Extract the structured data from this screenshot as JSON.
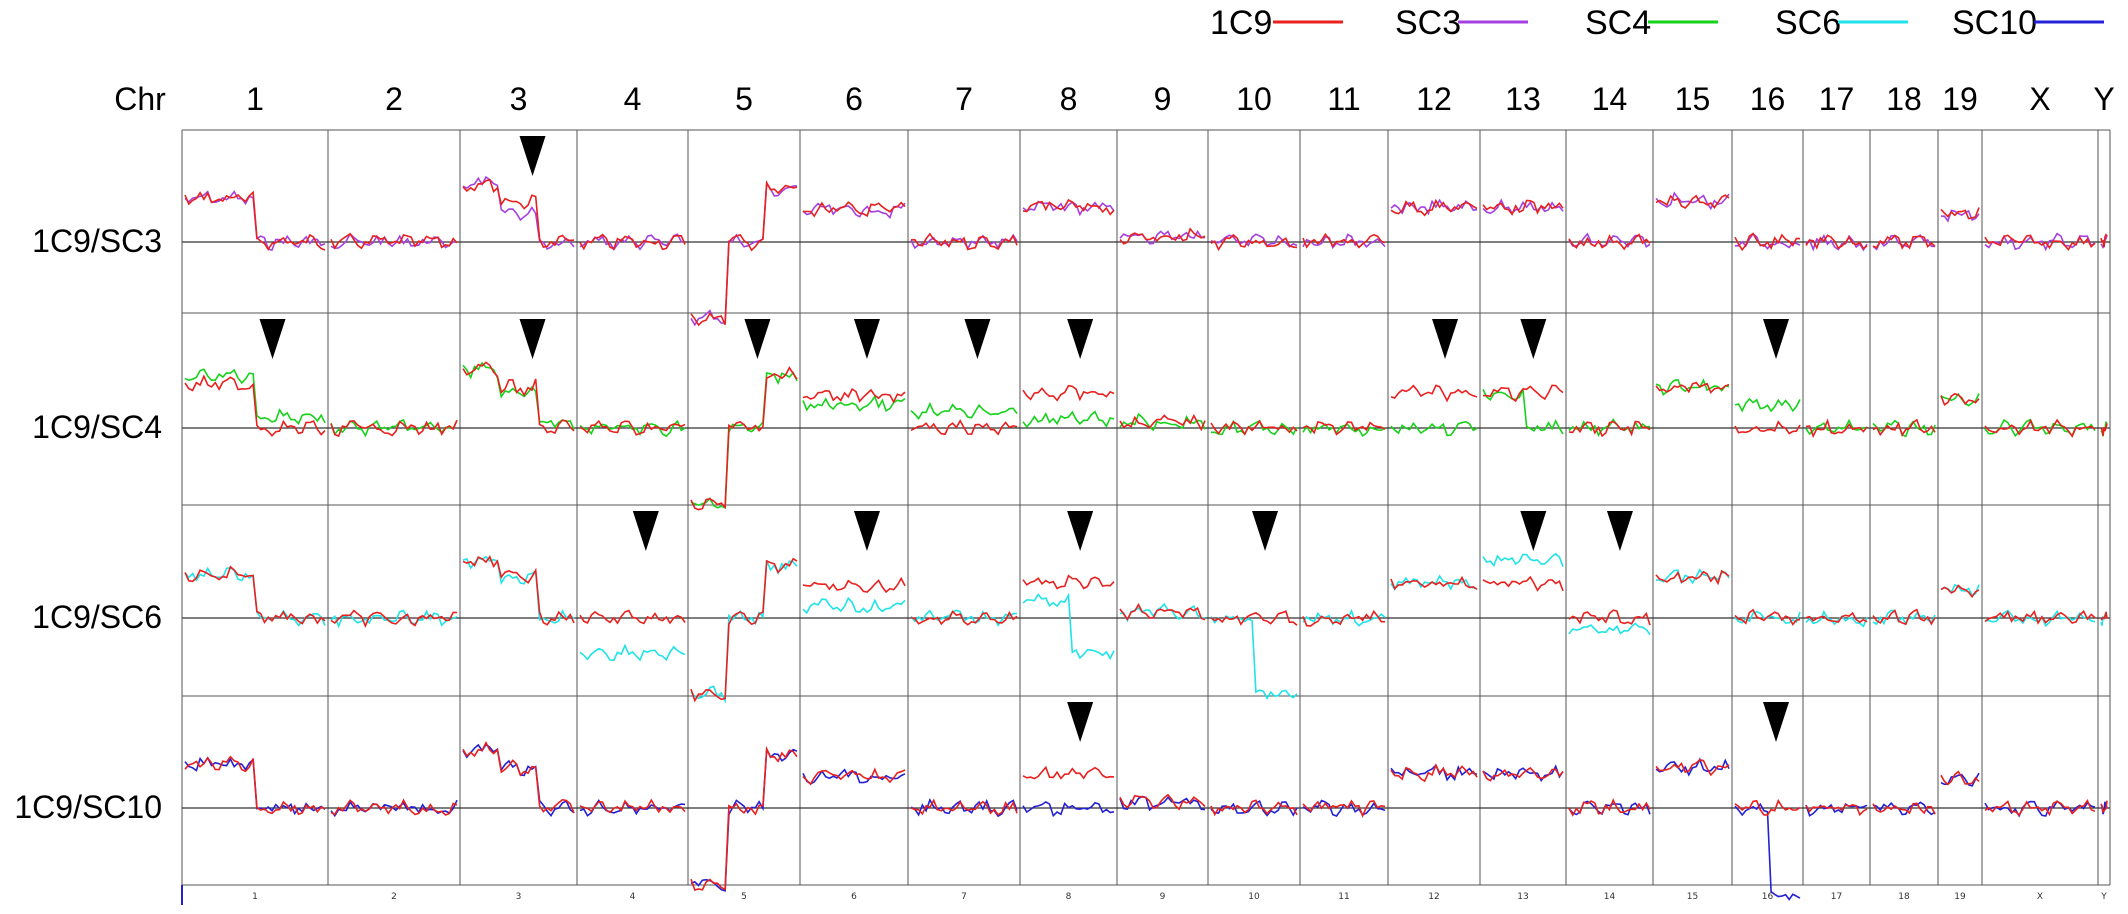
{
  "chart_data": {
    "type": "line",
    "chromosome_header": "Chr",
    "chromosomes": [
      "1",
      "2",
      "3",
      "4",
      "5",
      "6",
      "7",
      "8",
      "9",
      "10",
      "11",
      "12",
      "13",
      "14",
      "15",
      "16",
      "17",
      "18",
      "19",
      "X",
      "Y"
    ],
    "legend": [
      {
        "name": "1C9",
        "color": "#e8201e"
      },
      {
        "name": "SC3",
        "color": "#a540e0"
      },
      {
        "name": "SC4",
        "color": "#16d21a"
      },
      {
        "name": "SC6",
        "color": "#1fe3e8"
      },
      {
        "name": "SC10",
        "color": "#2320d6"
      }
    ],
    "panels": [
      {
        "label": "1C9/SC3",
        "reference": "1C9",
        "sample": "SC3",
        "ref_levels": {
          "1": [
            0.75,
            0
          ],
          "2": [
            0
          ],
          "3": [
            1.0,
            0.7,
            0
          ],
          "4": [
            0
          ],
          "5": [
            -1.3,
            0,
            0.9
          ],
          "6": [
            0.55
          ],
          "7": [
            0
          ],
          "8": [
            0.6
          ],
          "9": [
            0.1
          ],
          "10": [
            0
          ],
          "11": [
            0
          ],
          "12": [
            0.6
          ],
          "13": [
            0.6
          ],
          "14": [
            0
          ],
          "15": [
            0.7
          ],
          "16": [
            0
          ],
          "17": [
            0
          ],
          "18": [
            0
          ],
          "19": [
            0.5
          ],
          "X": [
            0
          ],
          "Y": [
            0
          ]
        },
        "sample_levels": {
          "3": [
            1.0,
            0.5,
            0
          ]
        },
        "arrows": [
          "3"
        ]
      },
      {
        "label": "1C9/SC4",
        "reference": "1C9",
        "sample": "SC4",
        "ref_levels": {
          "1": [
            0.75,
            0
          ],
          "2": [
            0
          ],
          "3": [
            1.0,
            0.7,
            0
          ],
          "4": [
            0
          ],
          "5": [
            -1.3,
            0,
            0.9
          ],
          "6": [
            0.55
          ],
          "7": [
            0
          ],
          "8": [
            0.6
          ],
          "9": [
            0.1
          ],
          "10": [
            0
          ],
          "11": [
            0
          ],
          "12": [
            0.6
          ],
          "13": [
            0.6
          ],
          "14": [
            0
          ],
          "15": [
            0.7
          ],
          "16": [
            0
          ],
          "17": [
            0
          ],
          "18": [
            0
          ],
          "19": [
            0.5
          ],
          "X": [
            0
          ],
          "Y": [
            0
          ]
        },
        "sample_levels": {
          "1": [
            0.9,
            0.2
          ],
          "3": [
            1.0,
            0.6,
            0.1
          ],
          "5": [
            -1.3,
            0,
            0.9
          ],
          "6": [
            0.4
          ],
          "7": [
            0.3
          ],
          "8": [
            0.15
          ],
          "12": [
            0.0
          ],
          "13": [
            0.6,
            0.0
          ],
          "16": [
            0.4
          ]
        },
        "arrows": [
          "1",
          "3",
          "5",
          "6",
          "7",
          "8",
          "12",
          "13",
          "16"
        ]
      },
      {
        "label": "1C9/SC6",
        "reference": "1C9",
        "sample": "SC6",
        "ref_levels": {
          "1": [
            0.75,
            0
          ],
          "2": [
            0
          ],
          "3": [
            1.0,
            0.7,
            0
          ],
          "4": [
            0
          ],
          "5": [
            -1.3,
            0,
            0.9
          ],
          "6": [
            0.55
          ],
          "7": [
            0
          ],
          "8": [
            0.6
          ],
          "9": [
            0.1
          ],
          "10": [
            0
          ],
          "11": [
            0
          ],
          "12": [
            0.6
          ],
          "13": [
            0.6
          ],
          "14": [
            0
          ],
          "15": [
            0.7
          ],
          "16": [
            0
          ],
          "17": [
            0
          ],
          "18": [
            0
          ],
          "19": [
            0.5
          ],
          "X": [
            0
          ],
          "Y": [
            0
          ]
        },
        "sample_levels": {
          "3": [
            1.0,
            0.7,
            0
          ],
          "4": [
            -0.6
          ],
          "5": [
            -1.3,
            0,
            0.9
          ],
          "6": [
            0.2
          ],
          "8": [
            0.3,
            -0.6
          ],
          "10": [
            0,
            -1.3
          ],
          "13": [
            1.0
          ],
          "14": [
            -0.2
          ]
        },
        "arrows": [
          "4",
          "6",
          "8",
          "10",
          "13",
          "14"
        ]
      },
      {
        "label": "1C9/SC10",
        "reference": "1C9",
        "sample": "SC10",
        "ref_levels": {
          "1": [
            0.75,
            0
          ],
          "2": [
            0
          ],
          "3": [
            1.0,
            0.7,
            0
          ],
          "4": [
            0
          ],
          "5": [
            -1.3,
            0,
            0.9
          ],
          "6": [
            0.55
          ],
          "7": [
            0
          ],
          "8": [
            0.6
          ],
          "9": [
            0.1
          ],
          "10": [
            0
          ],
          "11": [
            0
          ],
          "12": [
            0.6
          ],
          "13": [
            0.6
          ],
          "14": [
            0
          ],
          "15": [
            0.7
          ],
          "16": [
            0
          ],
          "17": [
            0
          ],
          "18": [
            0
          ],
          "19": [
            0.5
          ],
          "X": [
            0
          ],
          "Y": [
            0
          ]
        },
        "sample_levels": {
          "8": [
            0.0
          ],
          "16": [
            0,
            -1.5
          ]
        },
        "arrows": [
          "8",
          "16"
        ]
      }
    ],
    "bottom_tick_labels": [
      "1",
      "2",
      "3",
      "4",
      "5",
      "6",
      "7",
      "8",
      "9",
      "10",
      "11",
      "12",
      "13",
      "14",
      "15",
      "16",
      "17",
      "18",
      "19",
      "X",
      "Y"
    ],
    "y_axis": {
      "baseline": 0,
      "range": [
        -1.5,
        1.5
      ]
    },
    "grid": true,
    "legend_placement": "top-right"
  }
}
